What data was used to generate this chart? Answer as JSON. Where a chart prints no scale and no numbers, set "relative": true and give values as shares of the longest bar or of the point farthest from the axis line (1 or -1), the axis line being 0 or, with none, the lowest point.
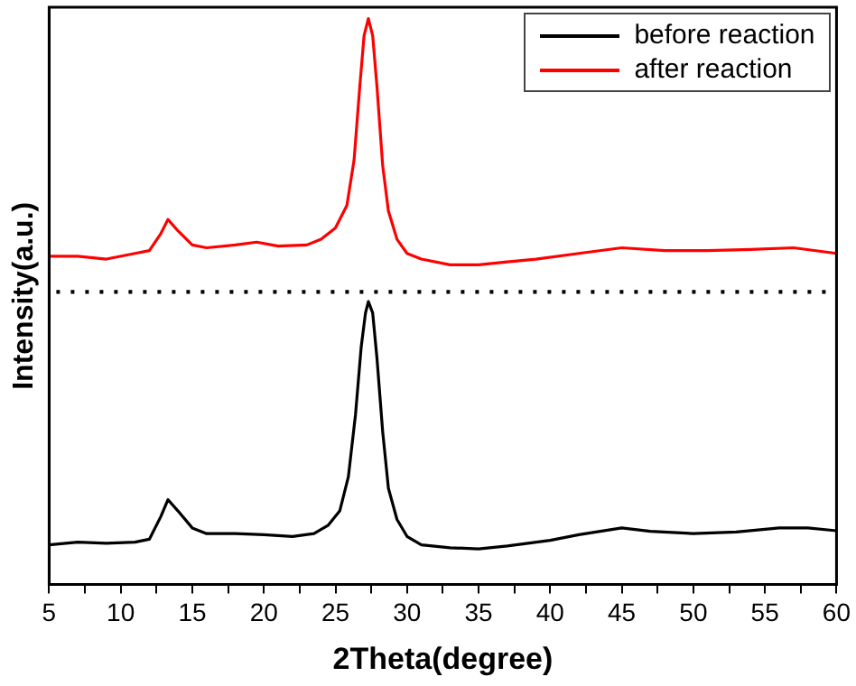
{
  "chart_data": {
    "type": "line",
    "relative": true,
    "xlabel": "2Theta(degree)",
    "ylabel": "Intensity(a.u.)",
    "xlim": [
      5,
      60
    ],
    "xticks": [
      5,
      {
        "value": 7.5,
        "label": null
      },
      10,
      {
        "value": 12.5,
        "label": null
      },
      15,
      {
        "value": 17.5,
        "label": null
      },
      20,
      {
        "value": 22.5,
        "label": null
      },
      25,
      {
        "value": 27.5,
        "label": null
      },
      30,
      {
        "value": 32.5,
        "label": null
      },
      35,
      {
        "value": 37.5,
        "label": null
      },
      40,
      {
        "value": 42.5,
        "label": null
      },
      45,
      {
        "value": 47.5,
        "label": null
      },
      50,
      {
        "value": 52.5,
        "label": null
      },
      55,
      {
        "value": 57.5,
        "label": null
      },
      60
    ],
    "grid": false,
    "legend": "top right",
    "marker": "none",
    "line_style": "solid",
    "ref_lines": [
      {
        "axis": "y",
        "value": 0.517,
        "label": null,
        "color": "#000000",
        "line_style": "dotted"
      }
    ],
    "series": [
      {
        "name": "before reaction",
        "color": "#000000",
        "x": [
          5,
          7,
          9,
          11,
          12,
          12.8,
          13.3,
          14,
          15,
          16,
          18,
          20,
          22,
          23.5,
          24.5,
          25.3,
          25.9,
          26.4,
          26.8,
          27.1,
          27.3,
          27.6,
          27.9,
          28.3,
          28.7,
          29.3,
          30,
          31,
          33,
          35,
          37,
          40,
          42,
          44,
          45,
          47,
          50,
          53,
          56,
          58,
          60
        ],
        "values": [
          0.07,
          0.075,
          0.073,
          0.075,
          0.08,
          0.12,
          0.15,
          0.13,
          0.1,
          0.09,
          0.09,
          0.088,
          0.085,
          0.09,
          0.105,
          0.13,
          0.19,
          0.3,
          0.42,
          0.48,
          0.5,
          0.48,
          0.4,
          0.27,
          0.17,
          0.115,
          0.085,
          0.07,
          0.065,
          0.063,
          0.068,
          0.078,
          0.088,
          0.096,
          0.1,
          0.094,
          0.09,
          0.093,
          0.1,
          0.1,
          0.095
        ]
      },
      {
        "name": "after reaction",
        "color": "#ff0000",
        "x": [
          5,
          7,
          9,
          11,
          12,
          12.8,
          13.3,
          14,
          15,
          16,
          18,
          19.5,
          21,
          23,
          24,
          25,
          25.8,
          26.3,
          26.7,
          27,
          27.3,
          27.6,
          27.9,
          28.3,
          28.7,
          29.3,
          30,
          31,
          33,
          35,
          37,
          39,
          42,
          45,
          48,
          51,
          54,
          57,
          60
        ],
        "values": [
          0.58,
          0.58,
          0.575,
          0.585,
          0.59,
          0.62,
          0.645,
          0.625,
          0.6,
          0.595,
          0.6,
          0.605,
          0.598,
          0.6,
          0.61,
          0.63,
          0.67,
          0.75,
          0.88,
          0.97,
          1,
          0.97,
          0.88,
          0.74,
          0.66,
          0.61,
          0.585,
          0.575,
          0.565,
          0.565,
          0.57,
          0.575,
          0.585,
          0.595,
          0.59,
          0.59,
          0.592,
          0.595,
          0.585
        ]
      }
    ]
  }
}
